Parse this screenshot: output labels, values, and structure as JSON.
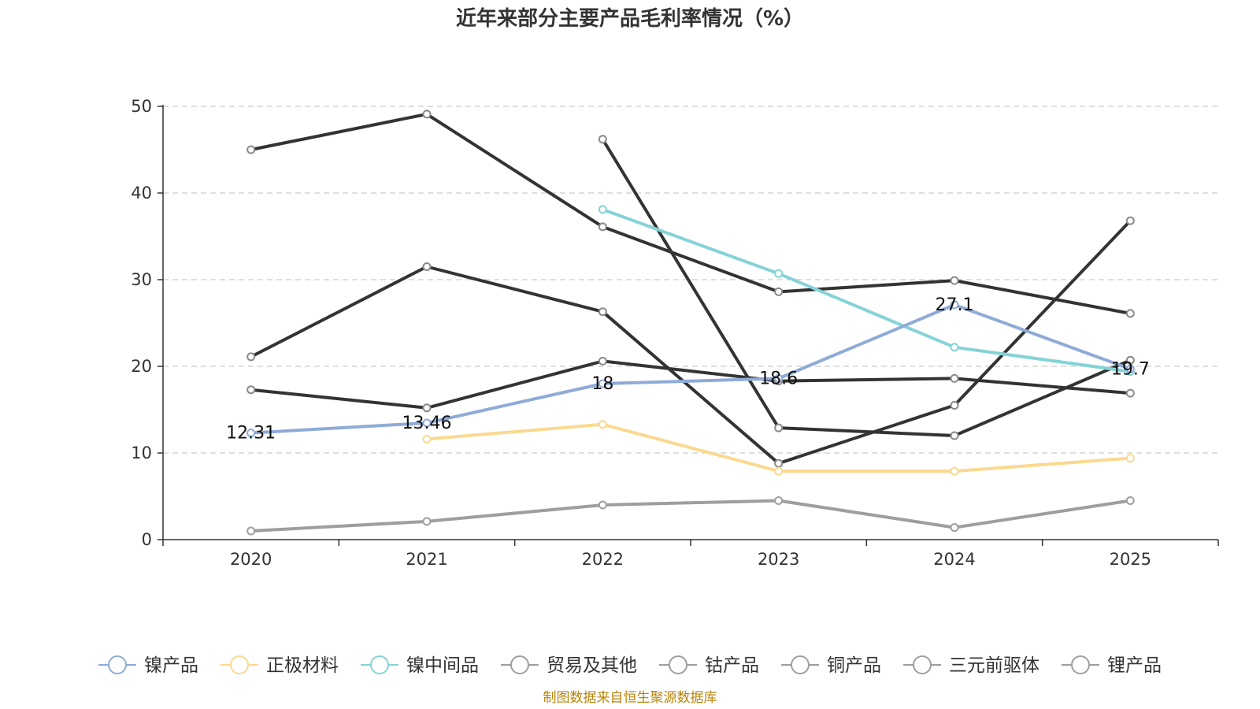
{
  "chart_data": {
    "type": "line",
    "title": "近年来部分主要产品毛利率情况（%）",
    "source": "制图数据来自恒生聚源数据库",
    "categories": [
      "2020",
      "2021",
      "2022",
      "2023",
      "2024",
      "2025"
    ],
    "ylim": [
      0,
      50
    ],
    "yticks": [
      0,
      10,
      20,
      30,
      40,
      50
    ],
    "grid": "horizontal dashed",
    "legend_position": "bottom",
    "series": [
      {
        "name": "镍产品",
        "color": "#8eabd8",
        "values": [
          12.31,
          13.46,
          18,
          18.6,
          27.1,
          19.7
        ],
        "labels": [
          "12.31",
          "13.46",
          "18",
          "18.6",
          "27.1",
          "19.7"
        ]
      },
      {
        "name": "正极材料",
        "color": "#fad98f",
        "values": [
          null,
          11.6,
          13.3,
          7.9,
          7.9,
          9.4
        ]
      },
      {
        "name": "镍中间品",
        "color": "#85d3d6",
        "values": [
          null,
          null,
          38.1,
          30.7,
          22.2,
          19.4
        ]
      },
      {
        "name": "贸易及其他",
        "color": "#9e9e9e",
        "values": [
          1.0,
          2.1,
          4.0,
          4.5,
          1.4,
          4.5
        ]
      },
      {
        "name": "钴产品",
        "color": "#333333",
        "values": [
          45,
          49.1,
          36.1,
          28.6,
          29.9,
          26.1
        ]
      },
      {
        "name": "铜产品",
        "color": "#333333",
        "values": [
          21.1,
          31.5,
          26.3,
          8.8,
          15.5,
          36.8
        ]
      },
      {
        "name": "三元前驱体",
        "color": "#333333",
        "values": [
          17.3,
          15.2,
          20.6,
          18.3,
          18.6,
          16.9
        ]
      },
      {
        "name": "锂产品",
        "color": "#333333",
        "values": [
          null,
          null,
          46.2,
          12.9,
          12.0,
          20.7
        ]
      }
    ]
  }
}
